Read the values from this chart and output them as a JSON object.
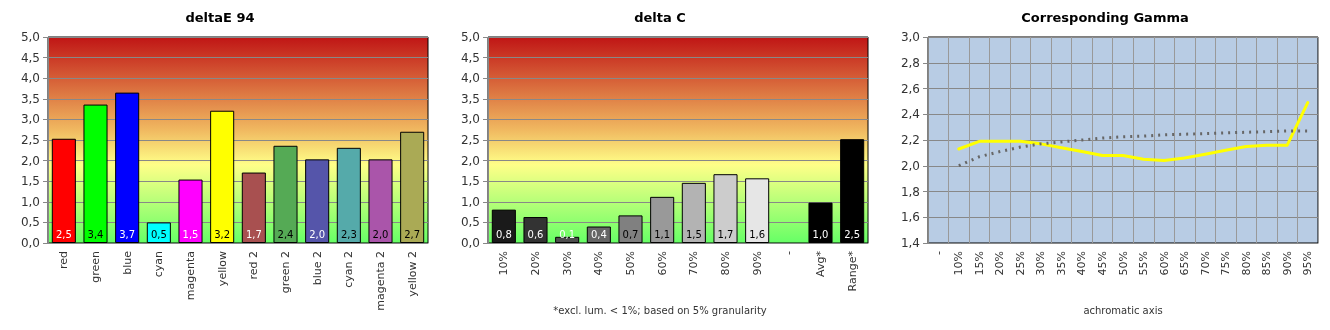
{
  "chart_data": [
    {
      "type": "bar",
      "title": "deltaE 94",
      "categories": [
        "red",
        "green",
        "blue",
        "cyan",
        "magenta",
        "yellow",
        "red 2",
        "green 2",
        "blue 2",
        "cyan 2",
        "magenta 2",
        "yellow 2"
      ],
      "values": [
        2.53,
        3.36,
        3.65,
        0.5,
        1.54,
        3.21,
        1.71,
        2.36,
        2.03,
        2.31,
        2.03,
        2.7
      ],
      "value_labels": [
        "2,5",
        "3,4",
        "3,7",
        "0,5",
        "1,5",
        "3,2",
        "1,7",
        "2,4",
        "2,0",
        "2,3",
        "2,0",
        "2,7"
      ],
      "colors": [
        "#ff0000",
        "#00ff00",
        "#0000ff",
        "#00ffff",
        "#ff00ff",
        "#ffff00",
        "#a85050",
        "#55aa55",
        "#5555aa",
        "#55aaaa",
        "#aa55aa",
        "#aaaa55"
      ],
      "ylim": [
        0,
        5
      ],
      "yticks": [
        {
          "value": 0,
          "label": "0,0"
        },
        {
          "value": 0.5,
          "label": "0,5"
        },
        {
          "value": 1,
          "label": "1,0"
        },
        {
          "value": 1.5,
          "label": "1,5"
        },
        {
          "value": 2,
          "label": "2,0"
        },
        {
          "value": 2.5,
          "label": "2,5"
        },
        {
          "value": 3,
          "label": "3,0"
        },
        {
          "value": 3.5,
          "label": "3,5"
        },
        {
          "value": 4,
          "label": "4,0"
        },
        {
          "value": 4.5,
          "label": "4,5"
        },
        {
          "value": 5,
          "label": "5,0"
        }
      ],
      "grid": "y"
    },
    {
      "type": "bar",
      "title": "delta C",
      "categories": [
        "10%",
        "20%",
        "30%",
        "40%",
        "50%",
        "60%",
        "70%",
        "80%",
        "90%",
        "-",
        "Avg*",
        "Range*"
      ],
      "values": [
        0.81,
        0.63,
        0.15,
        0.4,
        0.67,
        1.12,
        1.46,
        1.67,
        1.57,
        null,
        0.98,
        2.52
      ],
      "value_labels": [
        "0,8",
        "0,6",
        "0,1",
        "0,4",
        "0,7",
        "1,1",
        "1,5",
        "1,7",
        "1,6",
        null,
        "1,0",
        "2,5"
      ],
      "colors": [
        "#1a1a1a",
        "#333333",
        "#4d4d4d",
        "#666666",
        "#808080",
        "#999999",
        "#b3b3b3",
        "#cccccc",
        "#e6e6e6",
        "#000000",
        "#000000",
        "#000000"
      ],
      "ylim": [
        0,
        5
      ],
      "yticks": [
        {
          "value": 0,
          "label": "0,0"
        },
        {
          "value": 0.5,
          "label": "0,5"
        },
        {
          "value": 1,
          "label": "1,0"
        },
        {
          "value": 1.5,
          "label": "1,5"
        },
        {
          "value": 2,
          "label": "2,0"
        },
        {
          "value": 2.5,
          "label": "2,5"
        },
        {
          "value": 3,
          "label": "3,0"
        },
        {
          "value": 3.5,
          "label": "3,5"
        },
        {
          "value": 4,
          "label": "4,0"
        },
        {
          "value": 4.5,
          "label": "4,5"
        },
        {
          "value": 5,
          "label": "5,0"
        }
      ],
      "annotations": [
        "*excl. lum. < 1%; based on 5% granularity"
      ],
      "grid": "y"
    },
    {
      "type": "line",
      "title": "Corresponding Gamma",
      "xlabel": "achromatic axis",
      "categories": [
        "-",
        "10%",
        "15%",
        "20%",
        "25%",
        "30%",
        "35%",
        "40%",
        "45%",
        "50%",
        "55%",
        "60%",
        "65%",
        "70%",
        "75%",
        "80%",
        "85%",
        "90%",
        "95%"
      ],
      "series": [
        {
          "color": "#ffff00",
          "line_style": "solid",
          "values": [
            null,
            2.13,
            2.19,
            2.19,
            2.19,
            2.17,
            2.14,
            2.11,
            2.08,
            2.08,
            2.05,
            2.04,
            2.06,
            2.09,
            2.12,
            2.15,
            2.16,
            2.16,
            2.49
          ]
        },
        {
          "color": "#666666",
          "line_style": "dotted",
          "values": [
            null,
            2.0,
            2.07,
            2.11,
            2.145,
            2.17,
            2.185,
            2.2,
            2.215,
            2.225,
            2.23,
            2.24,
            2.245,
            2.25,
            2.255,
            2.26,
            2.265,
            2.27,
            2.27
          ]
        }
      ],
      "ylim": [
        1.4,
        3.0
      ],
      "yticks": [
        {
          "value": 1.4,
          "label": "1,4"
        },
        {
          "value": 1.6,
          "label": "1,6"
        },
        {
          "value": 1.8,
          "label": "1,8"
        },
        {
          "value": 2.0,
          "label": "2,0"
        },
        {
          "value": 2.2,
          "label": "2,2"
        },
        {
          "value": 2.4,
          "label": "2,4"
        },
        {
          "value": 2.6,
          "label": "2,6"
        },
        {
          "value": 2.8,
          "label": "2,8"
        },
        {
          "value": 3.0,
          "label": "3,0"
        }
      ],
      "grid": true,
      "marker": "none"
    }
  ]
}
